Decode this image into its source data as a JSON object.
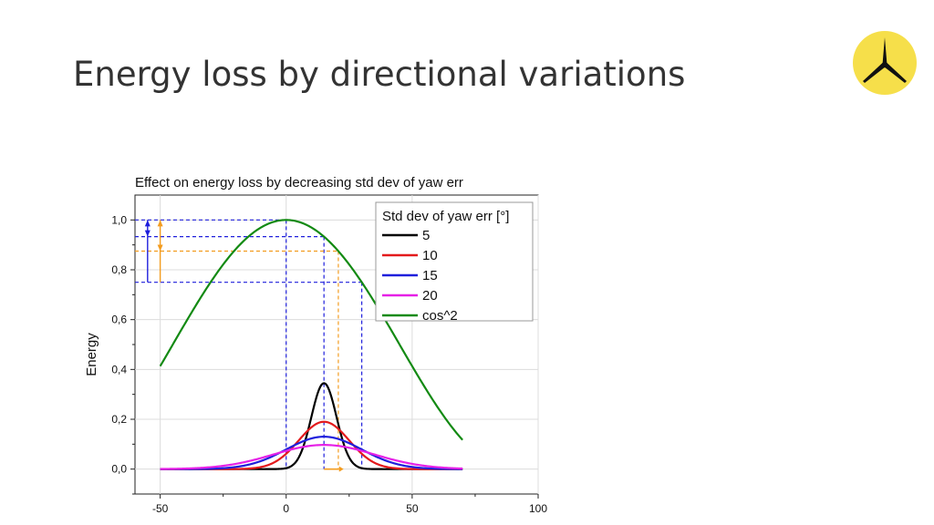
{
  "slide": {
    "title": "Energy loss by directional variations"
  },
  "logo": {
    "icon": "turbine-star-icon",
    "color": "#f6df4a"
  },
  "chart_data": {
    "type": "line",
    "title": "Effect on energy loss by decreasing std dev of yaw err",
    "xlabel": "",
    "ylabel": "Energy",
    "xlim": [
      -60,
      100
    ],
    "ylim": [
      -0.1,
      1.1
    ],
    "xticks": [
      -50,
      0,
      50,
      100
    ],
    "xtick_labels": [
      "-50",
      "0",
      "50",
      "100"
    ],
    "yticks": [
      0.0,
      0.2,
      0.4,
      0.6,
      0.8,
      1.0
    ],
    "ytick_labels": [
      "0,0",
      "0,2",
      "0,4",
      "0,6",
      "0,8",
      "1,0"
    ],
    "grid": true,
    "legend": {
      "title": "Std dev of yaw err [°]",
      "position": "top-right"
    },
    "series": [
      {
        "name": "5",
        "kind": "gaussian",
        "mean": 15,
        "std": 5,
        "x_range": [
          -50,
          70
        ],
        "peak": 0.345,
        "color": "#000000"
      },
      {
        "name": "10",
        "kind": "gaussian",
        "mean": 15,
        "std": 10,
        "x_range": [
          -50,
          70
        ],
        "peak": 0.19,
        "color": "#e31a1c"
      },
      {
        "name": "15",
        "kind": "gaussian",
        "mean": 15,
        "std": 15,
        "x_range": [
          -50,
          70
        ],
        "peak": 0.13,
        "color": "#1f1fdc"
      },
      {
        "name": "20",
        "kind": "gaussian",
        "mean": 15,
        "std": 20,
        "x_range": [
          -50,
          70
        ],
        "peak": 0.097,
        "color": "#e620e6"
      },
      {
        "name": "cos^2",
        "kind": "cos2",
        "x_range": [
          -50,
          70
        ],
        "color": "#138a13"
      }
    ],
    "annotations": {
      "blue_dashed": [
        {
          "x": 0,
          "y": 1.0
        },
        {
          "x": 15,
          "y": 0.933
        },
        {
          "x": 30,
          "y": 0.75
        }
      ],
      "orange_dashed": [
        {
          "x": 20.7,
          "y": 0.875
        }
      ],
      "colors": {
        "blue": "#1f1fdc",
        "orange": "#f39c1f"
      }
    }
  }
}
